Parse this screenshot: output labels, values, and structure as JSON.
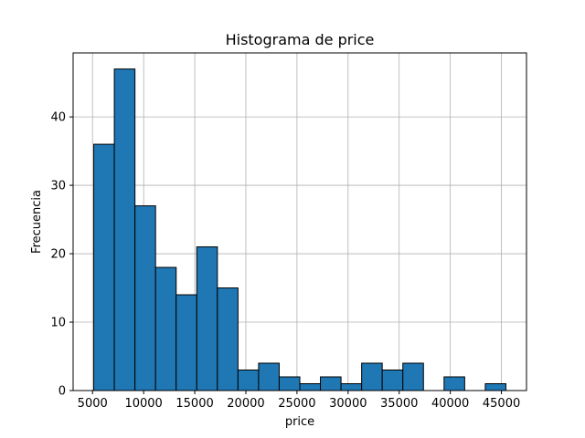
{
  "chart_data": {
    "type": "bar",
    "subtype": "histogram",
    "title": "Histograma de price",
    "xlabel": "price",
    "ylabel": "Frecuencia",
    "bin_edges": [
      5118,
      7134,
      9150,
      11166,
      13182,
      15198,
      17214,
      19230,
      21246,
      23262,
      25278,
      27294,
      29310,
      31326,
      33342,
      35358,
      37374,
      39390,
      41406,
      43422,
      45438
    ],
    "values": [
      36,
      47,
      27,
      18,
      14,
      21,
      15,
      3,
      4,
      2,
      1,
      2,
      1,
      4,
      3,
      4,
      0,
      2,
      0,
      1
    ],
    "xlim": [
      3102,
      47454
    ],
    "ylim": [
      0,
      49.35
    ],
    "x_ticks": [
      5000,
      10000,
      15000,
      20000,
      25000,
      30000,
      35000,
      40000,
      45000
    ],
    "x_tick_labels": [
      "5000",
      "10000",
      "15000",
      "20000",
      "25000",
      "30000",
      "35000",
      "40000",
      "45000"
    ],
    "y_ticks": [
      0,
      10,
      20,
      30,
      40
    ],
    "y_tick_labels": [
      "0",
      "10",
      "20",
      "30",
      "40"
    ],
    "grid": true,
    "colors": {
      "bar_fill": "#1f77b4",
      "bar_edge": "#000000",
      "grid": "#b0b0b0",
      "axes": "#000000"
    }
  }
}
